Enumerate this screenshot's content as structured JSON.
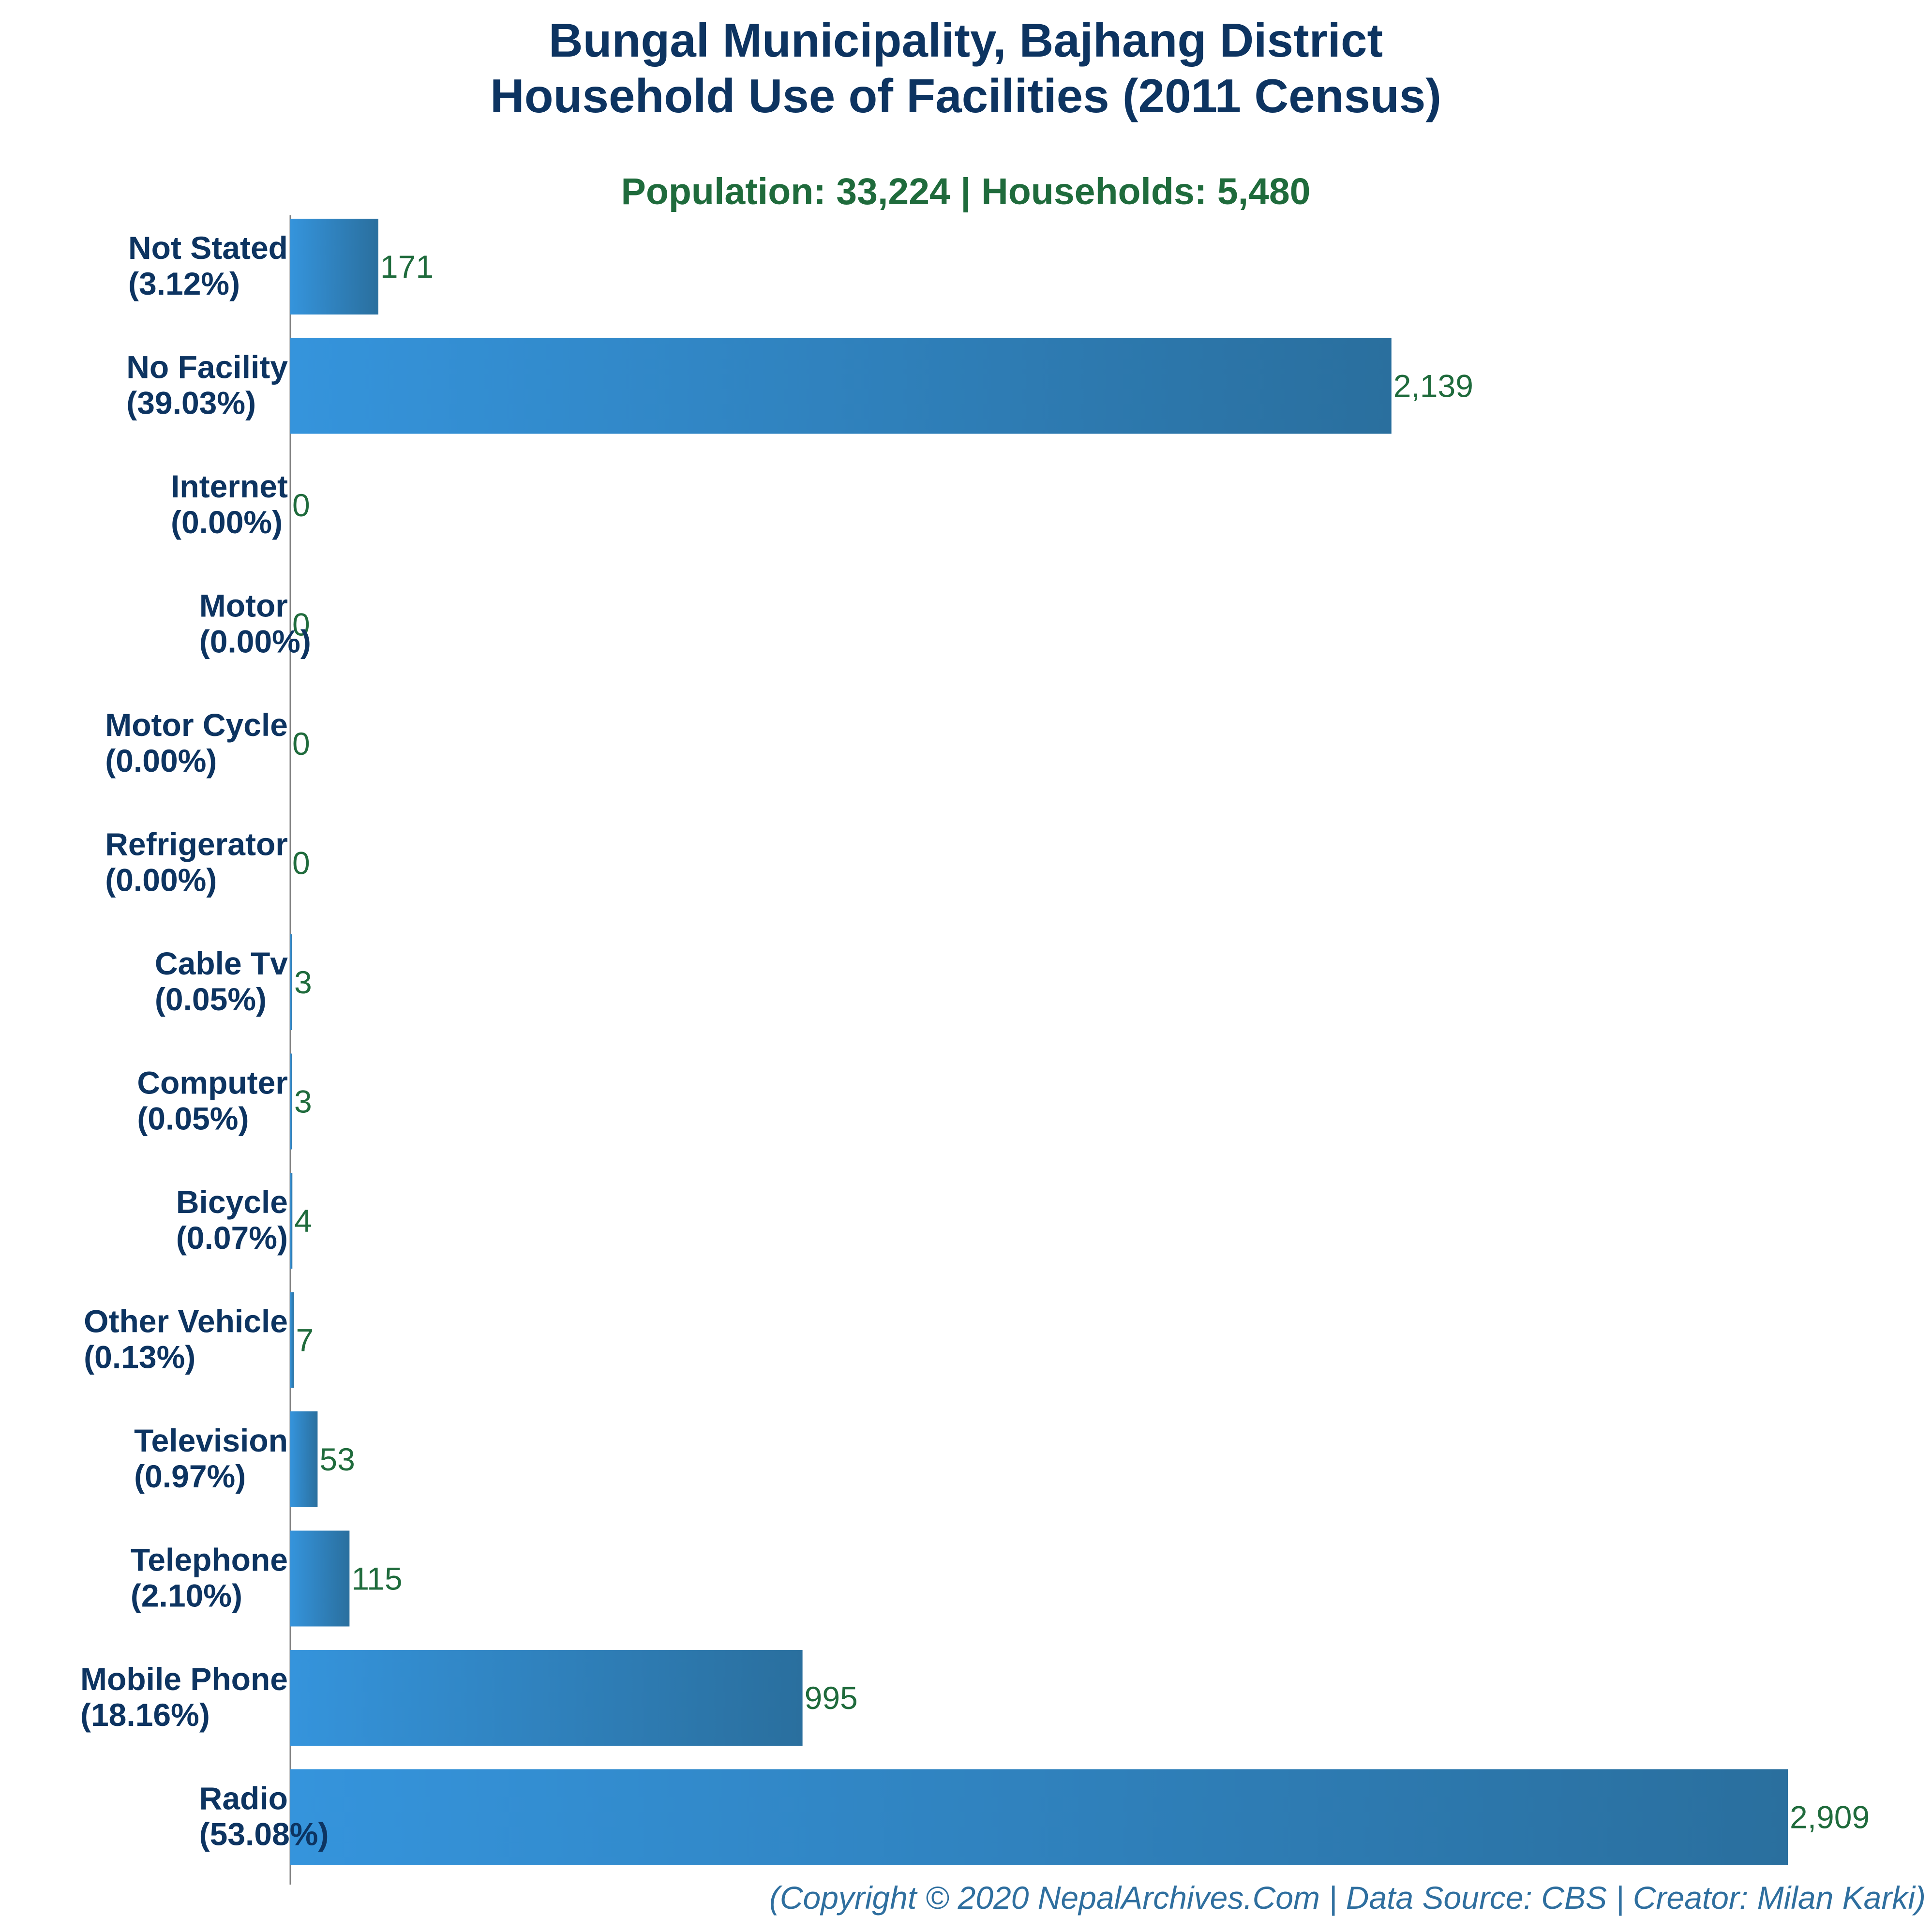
{
  "chart_data": {
    "type": "bar",
    "orientation": "horizontal",
    "title": [
      "Bungal Municipality, Bajhang District",
      "Household Use of Facilities (2011 Census)"
    ],
    "subtitle": "Population: 33,224 | Households: 5,480",
    "categories": [
      {
        "name": "Not Stated",
        "pct": "(3.12%)",
        "value": 171,
        "value_label": "171"
      },
      {
        "name": "No Facility",
        "pct": "(39.03%)",
        "value": 2139,
        "value_label": "2,139"
      },
      {
        "name": "Internet",
        "pct": "(0.00%)",
        "value": 0,
        "value_label": "0"
      },
      {
        "name": "Motor",
        "pct": "(0.00%)",
        "value": 0,
        "value_label": "0"
      },
      {
        "name": "Motor Cycle",
        "pct": "(0.00%)",
        "value": 0,
        "value_label": "0"
      },
      {
        "name": "Refrigerator",
        "pct": "(0.00%)",
        "value": 0,
        "value_label": "0"
      },
      {
        "name": "Cable Tv",
        "pct": "(0.05%)",
        "value": 3,
        "value_label": "3"
      },
      {
        "name": "Computer",
        "pct": "(0.05%)",
        "value": 3,
        "value_label": "3"
      },
      {
        "name": "Bicycle",
        "pct": "(0.07%)",
        "value": 4,
        "value_label": "4"
      },
      {
        "name": "Other Vehicle",
        "pct": "(0.13%)",
        "value": 7,
        "value_label": "7"
      },
      {
        "name": "Television",
        "pct": "(0.97%)",
        "value": 53,
        "value_label": "53"
      },
      {
        "name": "Telephone",
        "pct": "(2.10%)",
        "value": 115,
        "value_label": "115"
      },
      {
        "name": "Mobile Phone",
        "pct": "(18.16%)",
        "value": 995,
        "value_label": "995"
      },
      {
        "name": "Radio",
        "pct": "(53.08%)",
        "value": 2909,
        "value_label": "2,909"
      }
    ],
    "xlim": [
      0,
      2909
    ],
    "grid": false,
    "colors": {
      "bar_light": "#3594dc",
      "bar_dark": "#2a6f9e",
      "title": "#0d3461",
      "subtitle": "#1f6b3c",
      "value_label": "#1f6b3c",
      "footer": "#2f6f9f",
      "axis": "#7f7f7f"
    }
  },
  "footer": "(Copyright © 2020 NepalArchives.Com | Data Source: CBS | Creator: Milan Karki)"
}
